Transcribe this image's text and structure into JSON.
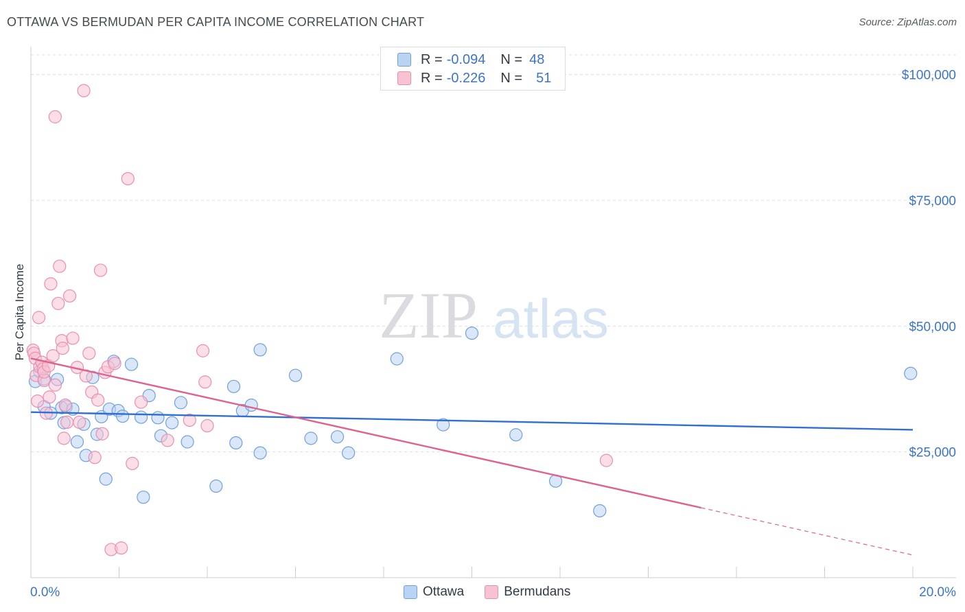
{
  "title": "OTTAWA VS BERMUDAN PER CAPITA INCOME CORRELATION CHART",
  "source": "Source: ZipAtlas.com",
  "watermark": {
    "zip": "ZIP",
    "atlas": "atlas"
  },
  "colors": {
    "ottawa_fill": "#b9d3f3",
    "ottawa_stroke": "#6f9fe0",
    "ottawa_line": "#2f6fd1",
    "bermudans_fill": "#f7c3d3",
    "bermudans_stroke": "#ec8eab",
    "bermudans_line": "#e0608e",
    "tick_label": "#3b74c9",
    "grid": "#dcdfe4"
  },
  "legend": {
    "ottawa": {
      "r_label": "R =",
      "r_value": "-0.094",
      "n_label": "N =",
      "n_value": "48"
    },
    "bermudans": {
      "r_label": "R =",
      "r_value": "-0.226",
      "n_label": "N =",
      "n_value": "51"
    }
  },
  "chart_data": {
    "type": "scatter",
    "title": "OTTAWA VS BERMUDAN PER CAPITA INCOME CORRELATION CHART",
    "xlabel": "",
    "ylabel": "Per Capita Income",
    "xlim": [
      0,
      20
    ],
    "ylim": [
      0,
      105000
    ],
    "x_tick_labels": [
      "0.0%",
      "20.0%"
    ],
    "y_ticks": [
      25000,
      50000,
      75000,
      100000
    ],
    "y_tick_labels": [
      "$25,000",
      "$50,000",
      "$75,000",
      "$100,000"
    ],
    "grid": true,
    "legend_position": "top-center",
    "series": [
      {
        "name": "Ottawa",
        "points": [
          [
            0.1,
            39000
          ],
          [
            0.2,
            41000
          ],
          [
            0.3,
            39500
          ],
          [
            0.3,
            34000
          ],
          [
            0.45,
            32700
          ],
          [
            0.6,
            39400
          ],
          [
            0.7,
            33800
          ],
          [
            0.75,
            30800
          ],
          [
            0.8,
            34000
          ],
          [
            0.95,
            33500
          ],
          [
            1.05,
            27000
          ],
          [
            1.2,
            30500
          ],
          [
            1.25,
            24300
          ],
          [
            1.4,
            39800
          ],
          [
            1.5,
            28500
          ],
          [
            1.6,
            32000
          ],
          [
            1.7,
            19600
          ],
          [
            1.78,
            33500
          ],
          [
            1.88,
            43000
          ],
          [
            1.98,
            33200
          ],
          [
            2.08,
            32100
          ],
          [
            2.28,
            42400
          ],
          [
            2.5,
            31900
          ],
          [
            2.55,
            16000
          ],
          [
            2.68,
            36200
          ],
          [
            2.88,
            31800
          ],
          [
            2.95,
            28200
          ],
          [
            3.2,
            30800
          ],
          [
            3.4,
            34800
          ],
          [
            3.55,
            27000
          ],
          [
            4.2,
            18200
          ],
          [
            4.6,
            38000
          ],
          [
            4.65,
            26800
          ],
          [
            4.8,
            33200
          ],
          [
            5.0,
            34300
          ],
          [
            5.2,
            45300
          ],
          [
            5.2,
            24800
          ],
          [
            6.0,
            40200
          ],
          [
            6.35,
            27700
          ],
          [
            6.95,
            28000
          ],
          [
            7.2,
            24800
          ],
          [
            8.3,
            43500
          ],
          [
            9.35,
            30400
          ],
          [
            10.0,
            48600
          ],
          [
            11.0,
            28400
          ],
          [
            11.9,
            19200
          ],
          [
            12.9,
            13300
          ],
          [
            19.95,
            40600
          ]
        ]
      },
      {
        "name": "Bermudans",
        "points": [
          [
            0.05,
            45200
          ],
          [
            0.07,
            44600
          ],
          [
            0.1,
            43600
          ],
          [
            0.12,
            40200
          ],
          [
            0.15,
            35100
          ],
          [
            0.18,
            51700
          ],
          [
            0.2,
            41900
          ],
          [
            0.25,
            42800
          ],
          [
            0.28,
            41500
          ],
          [
            0.3,
            39200
          ],
          [
            0.3,
            40900
          ],
          [
            0.35,
            32700
          ],
          [
            0.4,
            42100
          ],
          [
            0.42,
            35900
          ],
          [
            0.45,
            58400
          ],
          [
            0.5,
            44100
          ],
          [
            0.55,
            38300
          ],
          [
            0.55,
            91600
          ],
          [
            0.62,
            54500
          ],
          [
            0.65,
            61900
          ],
          [
            0.7,
            47100
          ],
          [
            0.72,
            45600
          ],
          [
            0.75,
            27700
          ],
          [
            0.78,
            34300
          ],
          [
            0.82,
            30900
          ],
          [
            0.88,
            56000
          ],
          [
            0.95,
            47600
          ],
          [
            1.05,
            41800
          ],
          [
            1.1,
            30900
          ],
          [
            1.2,
            96800
          ],
          [
            1.25,
            40100
          ],
          [
            1.32,
            44600
          ],
          [
            1.38,
            36900
          ],
          [
            1.45,
            23900
          ],
          [
            1.52,
            35300
          ],
          [
            1.58,
            61100
          ],
          [
            1.62,
            28600
          ],
          [
            1.68,
            40800
          ],
          [
            1.75,
            41900
          ],
          [
            1.82,
            5600
          ],
          [
            1.9,
            42600
          ],
          [
            2.05,
            5900
          ],
          [
            2.2,
            79300
          ],
          [
            2.3,
            22700
          ],
          [
            3.1,
            27300
          ],
          [
            2.5,
            34900
          ],
          [
            3.6,
            31300
          ],
          [
            3.9,
            45100
          ],
          [
            4.0,
            30200
          ],
          [
            3.95,
            38900
          ],
          [
            13.05,
            23300
          ]
        ]
      }
    ],
    "trendlines": [
      {
        "series": "Ottawa",
        "x": [
          0,
          20
        ],
        "y": [
          32900,
          29400
        ],
        "style": "solid"
      },
      {
        "series": "Bermudans",
        "x": [
          0,
          15.2
        ],
        "y": [
          43600,
          13900
        ],
        "style": "solid"
      },
      {
        "series": "Bermudans",
        "x": [
          15.2,
          20
        ],
        "y": [
          13900,
          4500
        ],
        "style": "dashed"
      }
    ]
  }
}
